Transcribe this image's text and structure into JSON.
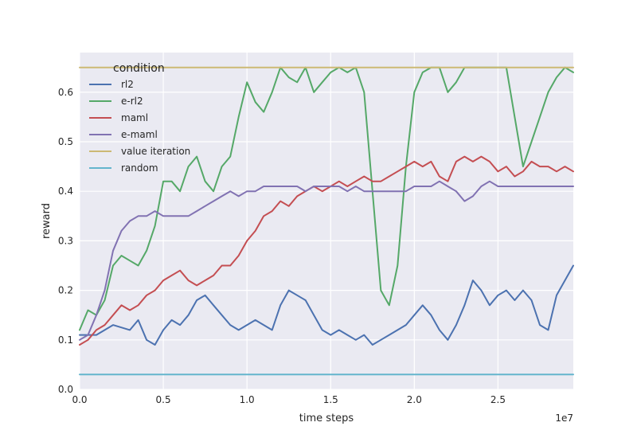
{
  "chart_data": {
    "type": "line",
    "xlabel": "time steps",
    "ylabel": "reward",
    "x_offset_label": "1e7",
    "xlim": [
      0,
      2.95
    ],
    "ylim": [
      0,
      0.68
    ],
    "xticks": [
      0,
      0.5,
      1.0,
      1.5,
      2.0,
      2.5
    ],
    "xtick_labels": [
      "0.0",
      "0.5",
      "1.0",
      "1.5",
      "2.0",
      "2.5"
    ],
    "yticks": [
      0,
      0.1,
      0.2,
      0.3,
      0.4,
      0.5,
      0.6
    ],
    "ytick_labels": [
      "0.0",
      "0.1",
      "0.2",
      "0.3",
      "0.4",
      "0.5",
      "0.6"
    ],
    "grid": true,
    "background": "#eaeaf2",
    "legend_title": "condition",
    "legend_position": "top-left",
    "series": [
      {
        "name": "rl2",
        "color": "#4c72b0",
        "points": [
          [
            0,
            0.11
          ],
          [
            0.1,
            0.11
          ],
          [
            0.2,
            0.13
          ],
          [
            0.3,
            0.12
          ],
          [
            0.35,
            0.14
          ],
          [
            0.4,
            0.1
          ],
          [
            0.45,
            0.09
          ],
          [
            0.5,
            0.12
          ],
          [
            0.55,
            0.14
          ],
          [
            0.6,
            0.13
          ],
          [
            0.65,
            0.15
          ],
          [
            0.7,
            0.18
          ],
          [
            0.75,
            0.19
          ],
          [
            0.8,
            0.17
          ],
          [
            0.85,
            0.15
          ],
          [
            0.9,
            0.13
          ],
          [
            0.95,
            0.12
          ],
          [
            1.0,
            0.13
          ],
          [
            1.05,
            0.14
          ],
          [
            1.1,
            0.13
          ],
          [
            1.15,
            0.12
          ],
          [
            1.2,
            0.17
          ],
          [
            1.25,
            0.2
          ],
          [
            1.3,
            0.19
          ],
          [
            1.35,
            0.18
          ],
          [
            1.4,
            0.15
          ],
          [
            1.45,
            0.12
          ],
          [
            1.5,
            0.11
          ],
          [
            1.55,
            0.12
          ],
          [
            1.6,
            0.11
          ],
          [
            1.65,
            0.1
          ],
          [
            1.7,
            0.11
          ],
          [
            1.75,
            0.09
          ],
          [
            1.8,
            0.1
          ],
          [
            1.85,
            0.11
          ],
          [
            1.9,
            0.12
          ],
          [
            1.95,
            0.13
          ],
          [
            2.0,
            0.15
          ],
          [
            2.05,
            0.17
          ],
          [
            2.1,
            0.15
          ],
          [
            2.15,
            0.12
          ],
          [
            2.2,
            0.1
          ],
          [
            2.25,
            0.13
          ],
          [
            2.3,
            0.17
          ],
          [
            2.35,
            0.22
          ],
          [
            2.4,
            0.2
          ],
          [
            2.45,
            0.17
          ],
          [
            2.5,
            0.19
          ],
          [
            2.55,
            0.2
          ],
          [
            2.6,
            0.18
          ],
          [
            2.65,
            0.2
          ],
          [
            2.7,
            0.18
          ],
          [
            2.75,
            0.13
          ],
          [
            2.8,
            0.12
          ],
          [
            2.85,
            0.19
          ],
          [
            2.9,
            0.22
          ],
          [
            2.95,
            0.25
          ]
        ]
      },
      {
        "name": "e-rl2",
        "color": "#55a868",
        "points": [
          [
            0,
            0.12
          ],
          [
            0.05,
            0.16
          ],
          [
            0.1,
            0.15
          ],
          [
            0.15,
            0.18
          ],
          [
            0.2,
            0.25
          ],
          [
            0.25,
            0.27
          ],
          [
            0.3,
            0.26
          ],
          [
            0.35,
            0.25
          ],
          [
            0.4,
            0.28
          ],
          [
            0.45,
            0.33
          ],
          [
            0.5,
            0.42
          ],
          [
            0.55,
            0.42
          ],
          [
            0.6,
            0.4
          ],
          [
            0.65,
            0.45
          ],
          [
            0.7,
            0.47
          ],
          [
            0.75,
            0.42
          ],
          [
            0.8,
            0.4
          ],
          [
            0.85,
            0.45
          ],
          [
            0.9,
            0.47
          ],
          [
            0.95,
            0.55
          ],
          [
            1.0,
            0.62
          ],
          [
            1.05,
            0.58
          ],
          [
            1.1,
            0.56
          ],
          [
            1.15,
            0.6
          ],
          [
            1.2,
            0.65
          ],
          [
            1.25,
            0.63
          ],
          [
            1.3,
            0.62
          ],
          [
            1.35,
            0.65
          ],
          [
            1.4,
            0.6
          ],
          [
            1.45,
            0.62
          ],
          [
            1.5,
            0.64
          ],
          [
            1.55,
            0.65
          ],
          [
            1.6,
            0.64
          ],
          [
            1.65,
            0.65
          ],
          [
            1.7,
            0.6
          ],
          [
            1.75,
            0.4
          ],
          [
            1.8,
            0.2
          ],
          [
            1.85,
            0.17
          ],
          [
            1.9,
            0.25
          ],
          [
            1.95,
            0.45
          ],
          [
            2.0,
            0.6
          ],
          [
            2.05,
            0.64
          ],
          [
            2.1,
            0.65
          ],
          [
            2.15,
            0.65
          ],
          [
            2.2,
            0.6
          ],
          [
            2.25,
            0.62
          ],
          [
            2.3,
            0.65
          ],
          [
            2.35,
            0.65
          ],
          [
            2.4,
            0.65
          ],
          [
            2.45,
            0.65
          ],
          [
            2.5,
            0.65
          ],
          [
            2.55,
            0.65
          ],
          [
            2.6,
            0.55
          ],
          [
            2.65,
            0.45
          ],
          [
            2.7,
            0.5
          ],
          [
            2.75,
            0.55
          ],
          [
            2.8,
            0.6
          ],
          [
            2.85,
            0.63
          ],
          [
            2.9,
            0.65
          ],
          [
            2.95,
            0.64
          ]
        ]
      },
      {
        "name": "maml",
        "color": "#c44e52",
        "points": [
          [
            0,
            0.09
          ],
          [
            0.05,
            0.1
          ],
          [
            0.1,
            0.12
          ],
          [
            0.15,
            0.13
          ],
          [
            0.2,
            0.15
          ],
          [
            0.25,
            0.17
          ],
          [
            0.3,
            0.16
          ],
          [
            0.35,
            0.17
          ],
          [
            0.4,
            0.19
          ],
          [
            0.45,
            0.2
          ],
          [
            0.5,
            0.22
          ],
          [
            0.55,
            0.23
          ],
          [
            0.6,
            0.24
          ],
          [
            0.65,
            0.22
          ],
          [
            0.7,
            0.21
          ],
          [
            0.75,
            0.22
          ],
          [
            0.8,
            0.23
          ],
          [
            0.85,
            0.25
          ],
          [
            0.9,
            0.25
          ],
          [
            0.95,
            0.27
          ],
          [
            1.0,
            0.3
          ],
          [
            1.05,
            0.32
          ],
          [
            1.1,
            0.35
          ],
          [
            1.15,
            0.36
          ],
          [
            1.2,
            0.38
          ],
          [
            1.25,
            0.37
          ],
          [
            1.3,
            0.39
          ],
          [
            1.35,
            0.4
          ],
          [
            1.4,
            0.41
          ],
          [
            1.45,
            0.4
          ],
          [
            1.5,
            0.41
          ],
          [
            1.55,
            0.42
          ],
          [
            1.6,
            0.41
          ],
          [
            1.65,
            0.42
          ],
          [
            1.7,
            0.43
          ],
          [
            1.75,
            0.42
          ],
          [
            1.8,
            0.42
          ],
          [
            1.85,
            0.43
          ],
          [
            1.9,
            0.44
          ],
          [
            1.95,
            0.45
          ],
          [
            2.0,
            0.46
          ],
          [
            2.05,
            0.45
          ],
          [
            2.1,
            0.46
          ],
          [
            2.15,
            0.43
          ],
          [
            2.2,
            0.42
          ],
          [
            2.25,
            0.46
          ],
          [
            2.3,
            0.47
          ],
          [
            2.35,
            0.46
          ],
          [
            2.4,
            0.47
          ],
          [
            2.45,
            0.46
          ],
          [
            2.5,
            0.44
          ],
          [
            2.55,
            0.45
          ],
          [
            2.6,
            0.43
          ],
          [
            2.65,
            0.44
          ],
          [
            2.7,
            0.46
          ],
          [
            2.75,
            0.45
          ],
          [
            2.8,
            0.45
          ],
          [
            2.85,
            0.44
          ],
          [
            2.9,
            0.45
          ],
          [
            2.95,
            0.44
          ]
        ]
      },
      {
        "name": "e-maml",
        "color": "#8172b2",
        "points": [
          [
            0,
            0.1
          ],
          [
            0.05,
            0.11
          ],
          [
            0.1,
            0.15
          ],
          [
            0.15,
            0.2
          ],
          [
            0.2,
            0.28
          ],
          [
            0.25,
            0.32
          ],
          [
            0.3,
            0.34
          ],
          [
            0.35,
            0.35
          ],
          [
            0.4,
            0.35
          ],
          [
            0.45,
            0.36
          ],
          [
            0.5,
            0.35
          ],
          [
            0.55,
            0.35
          ],
          [
            0.6,
            0.35
          ],
          [
            0.65,
            0.35
          ],
          [
            0.7,
            0.36
          ],
          [
            0.75,
            0.37
          ],
          [
            0.8,
            0.38
          ],
          [
            0.85,
            0.39
          ],
          [
            0.9,
            0.4
          ],
          [
            0.95,
            0.39
          ],
          [
            1.0,
            0.4
          ],
          [
            1.05,
            0.4
          ],
          [
            1.1,
            0.41
          ],
          [
            1.15,
            0.41
          ],
          [
            1.2,
            0.41
          ],
          [
            1.25,
            0.41
          ],
          [
            1.3,
            0.41
          ],
          [
            1.35,
            0.4
          ],
          [
            1.4,
            0.41
          ],
          [
            1.45,
            0.41
          ],
          [
            1.5,
            0.41
          ],
          [
            1.55,
            0.41
          ],
          [
            1.6,
            0.4
          ],
          [
            1.65,
            0.41
          ],
          [
            1.7,
            0.4
          ],
          [
            1.75,
            0.4
          ],
          [
            1.8,
            0.4
          ],
          [
            1.85,
            0.4
          ],
          [
            1.9,
            0.4
          ],
          [
            1.95,
            0.4
          ],
          [
            2.0,
            0.41
          ],
          [
            2.05,
            0.41
          ],
          [
            2.1,
            0.41
          ],
          [
            2.15,
            0.42
          ],
          [
            2.2,
            0.41
          ],
          [
            2.25,
            0.4
          ],
          [
            2.3,
            0.38
          ],
          [
            2.35,
            0.39
          ],
          [
            2.4,
            0.41
          ],
          [
            2.45,
            0.42
          ],
          [
            2.5,
            0.41
          ],
          [
            2.55,
            0.41
          ],
          [
            2.6,
            0.41
          ],
          [
            2.65,
            0.41
          ],
          [
            2.7,
            0.41
          ],
          [
            2.75,
            0.41
          ],
          [
            2.8,
            0.41
          ],
          [
            2.85,
            0.41
          ],
          [
            2.9,
            0.41
          ],
          [
            2.95,
            0.41
          ]
        ]
      },
      {
        "name": "value iteration",
        "color": "#ccb974",
        "points": [
          [
            0,
            0.65
          ],
          [
            2.95,
            0.65
          ]
        ]
      },
      {
        "name": "random",
        "color": "#64b5cd",
        "points": [
          [
            0,
            0.03
          ],
          [
            2.95,
            0.03
          ]
        ]
      }
    ]
  }
}
